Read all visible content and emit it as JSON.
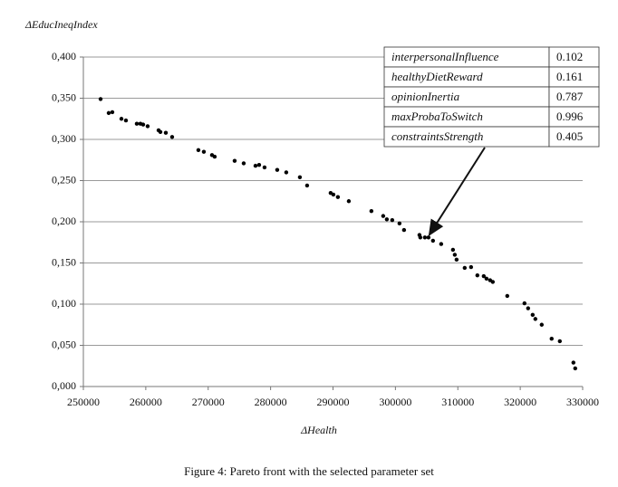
{
  "chart_data": {
    "type": "scatter",
    "y_label": "ΔEducIneqIndex",
    "x_label": "ΔHealth",
    "caption": "Figure 4: Pareto front with the selected parameter set",
    "color": "#000000",
    "grid": true,
    "xlim": [
      250000,
      330000
    ],
    "xticks": [
      250000,
      260000,
      270000,
      280000,
      290000,
      300000,
      310000,
      320000,
      330000
    ],
    "ylim": [
      0,
      0.4
    ],
    "yticks": [
      {
        "value": 0,
        "label": "0,000"
      },
      {
        "value": 0.05,
        "label": "0,050"
      },
      {
        "value": 0.1,
        "label": "0,100"
      },
      {
        "value": 0.15,
        "label": "0,150"
      },
      {
        "value": 0.2,
        "label": "0,200"
      },
      {
        "value": 0.25,
        "label": "0,250"
      },
      {
        "value": 0.3,
        "label": "0,300"
      },
      {
        "value": 0.35,
        "label": "0,350"
      },
      {
        "value": 0.4,
        "label": "0,400"
      }
    ],
    "x": [
      252760,
      254060,
      254640,
      256100,
      256820,
      258560,
      259140,
      259580,
      260300,
      262050,
      262340,
      263210,
      264220,
      268430,
      269300,
      270610,
      271040,
      274240,
      275690,
      277580,
      278160,
      279030,
      281060,
      282510,
      284690,
      285850,
      289620,
      290060,
      290780,
      292530,
      296150,
      298040,
      298620,
      299490,
      300650,
      301380,
      303850,
      303990,
      304720,
      305300,
      306020,
      307330,
      309220,
      309510,
      309800,
      311100,
      312120,
      313130,
      314150,
      314590,
      315170,
      315600,
      317920,
      320680,
      321260,
      321990,
      322420,
      323440,
      325030,
      326340,
      328520,
      328810
    ],
    "values": [
      0.349,
      0.332,
      0.333,
      0.325,
      0.323,
      0.319,
      0.319,
      0.318,
      0.316,
      0.311,
      0.309,
      0.308,
      0.303,
      0.287,
      0.285,
      0.281,
      0.279,
      0.274,
      0.271,
      0.268,
      0.269,
      0.266,
      0.263,
      0.26,
      0.254,
      0.244,
      0.235,
      0.233,
      0.23,
      0.225,
      0.213,
      0.207,
      0.203,
      0.202,
      0.198,
      0.19,
      0.184,
      0.181,
      0.181,
      0.181,
      0.177,
      0.173,
      0.166,
      0.16,
      0.154,
      0.144,
      0.145,
      0.135,
      0.134,
      0.131,
      0.129,
      0.127,
      0.11,
      0.101,
      0.095,
      0.087,
      0.082,
      0.075,
      0.058,
      0.055,
      0.029,
      0.022
    ],
    "annotation": {
      "rows": [
        {
          "name": "interpersonalInfluence",
          "value": 0.102
        },
        {
          "name": "healthyDietReward",
          "value": 0.161
        },
        {
          "name": "opinionInertia",
          "value": 0.787
        },
        {
          "name": "maxProbaToSwitch",
          "value": 0.996
        },
        {
          "name": "constraintsStrength",
          "value": 0.405
        }
      ],
      "points_to": {
        "x": 305300,
        "y": 0.181
      }
    }
  }
}
